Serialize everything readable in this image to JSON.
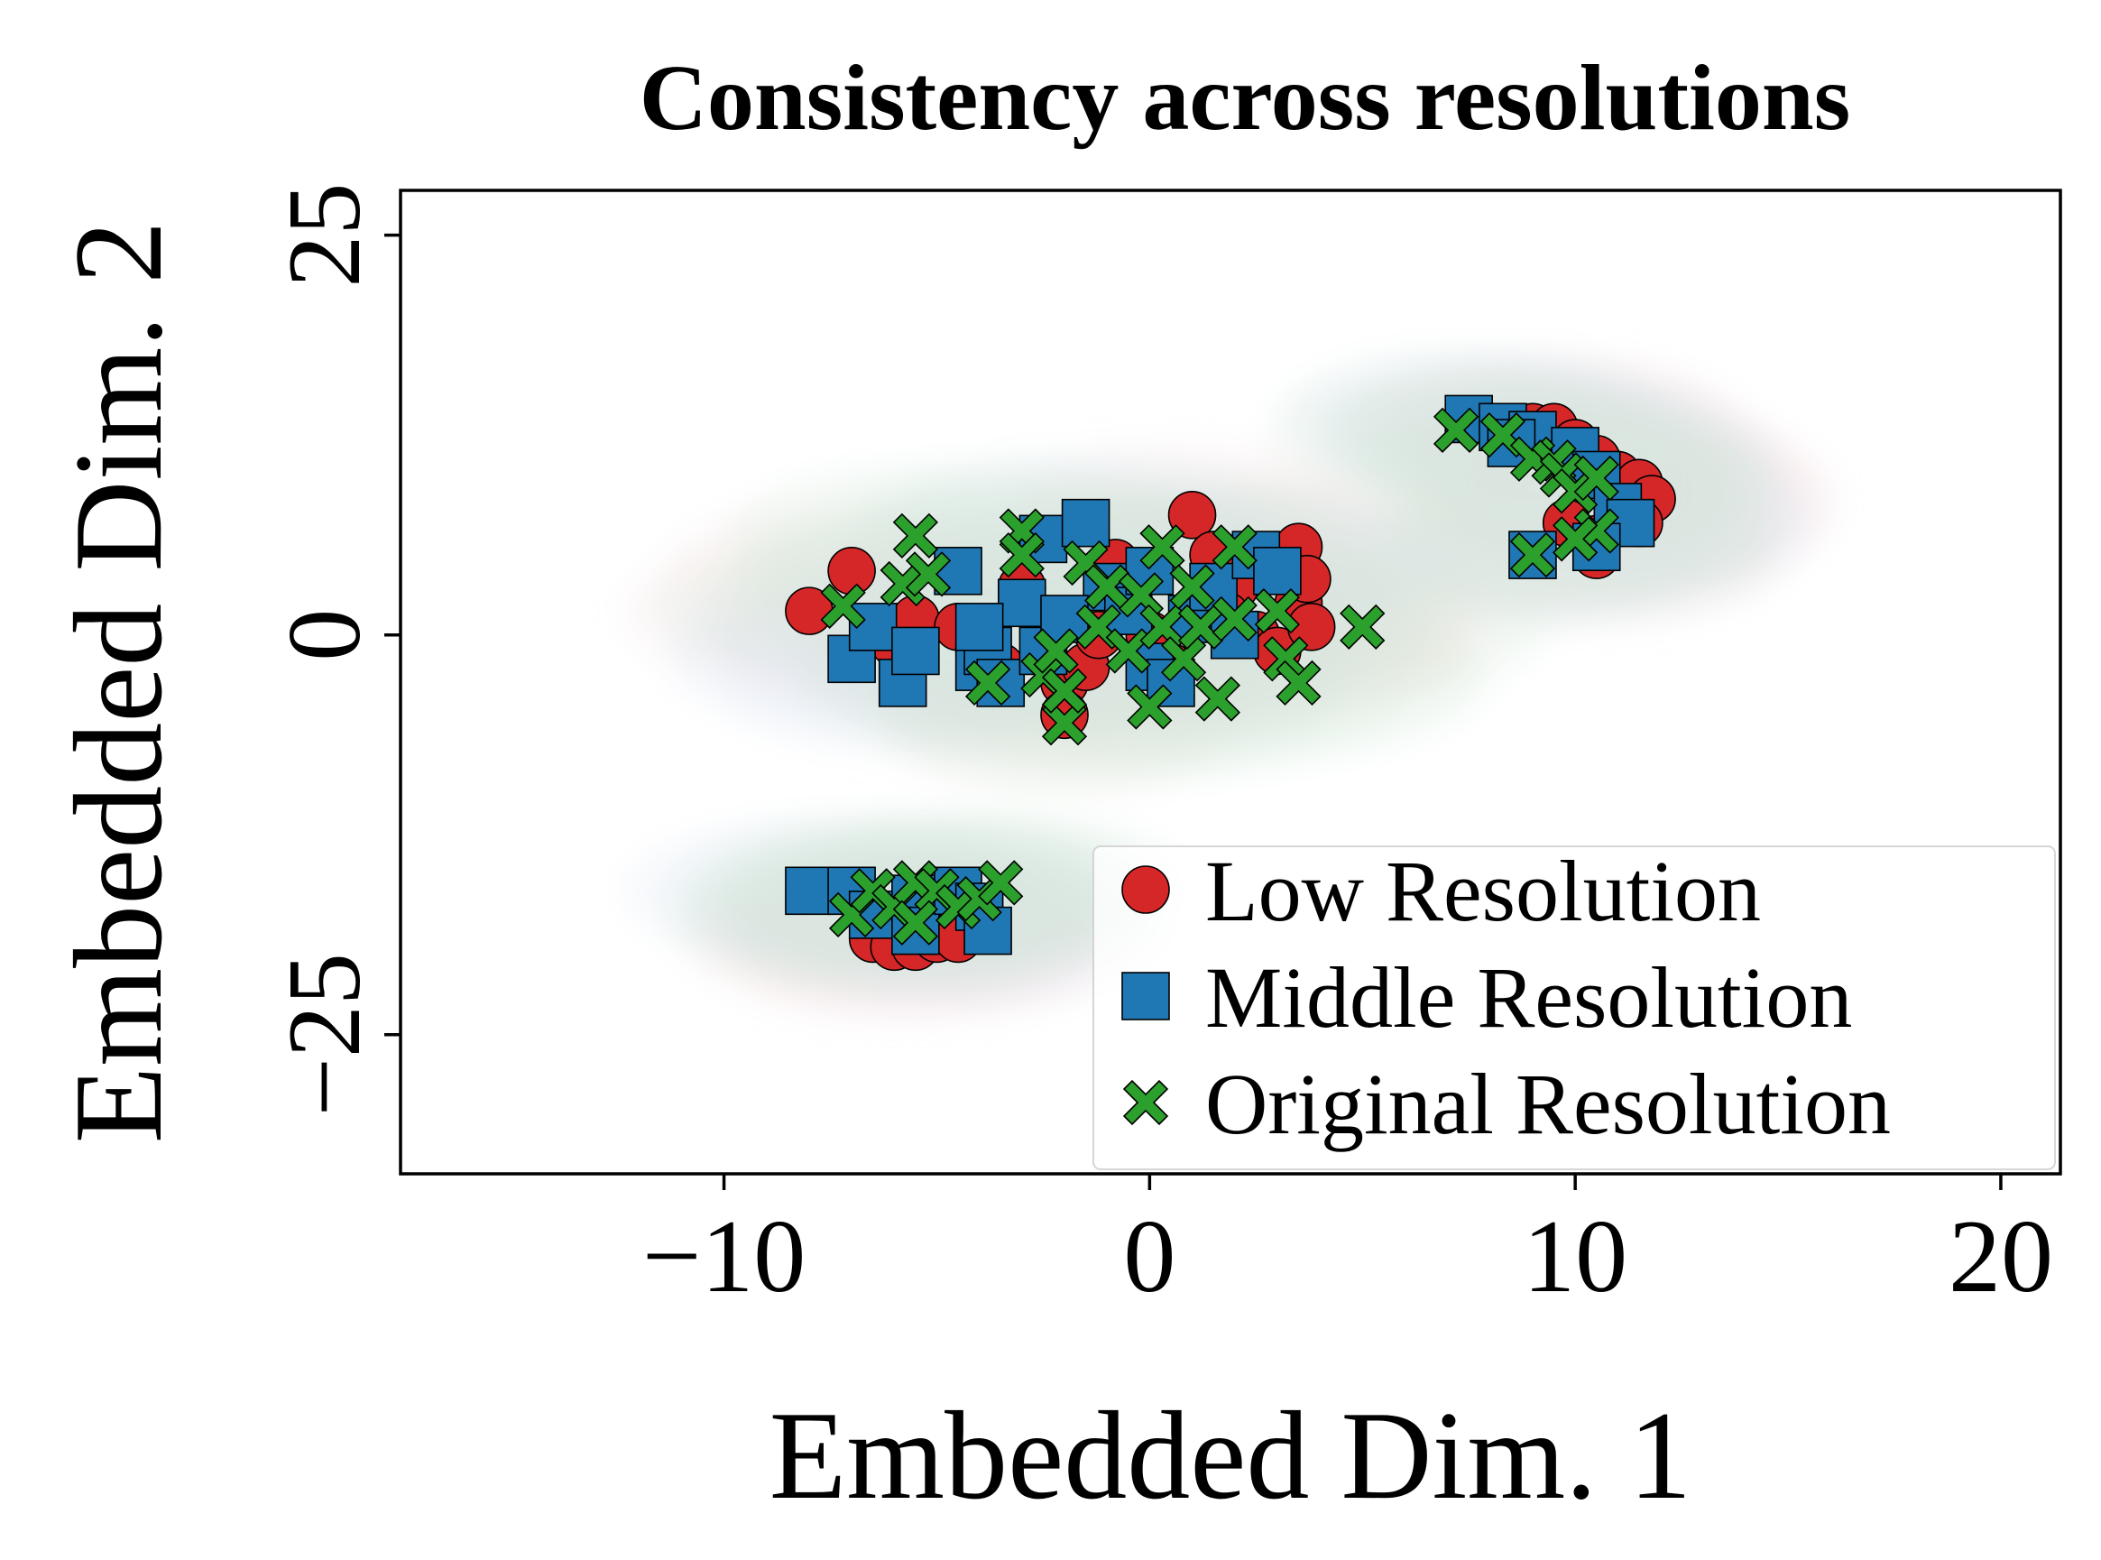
{
  "chart_data": {
    "type": "scatter",
    "title": "Consistency across resolutions",
    "xlabel": "Embedded Dim. 1",
    "ylabel": "Embedded Dim. 2",
    "xlim": [
      -17.6,
      21.4
    ],
    "ylim": [
      -33.7,
      27.8
    ],
    "xticks": [
      -10,
      0,
      10,
      20
    ],
    "yticks": [
      -25,
      0,
      25
    ],
    "xtick_labels": [
      "−10",
      "0",
      "10",
      "20"
    ],
    "ytick_labels": [
      "−25",
      "0",
      "25"
    ],
    "grid": false,
    "legend_position": "lower-right",
    "density_contours": true,
    "series": [
      {
        "name": "Low Resolution",
        "marker": "circle",
        "color": "#d62728",
        "points": [
          [
            -8,
            1.5
          ],
          [
            -7,
            4
          ],
          [
            -6,
            -0.5
          ],
          [
            -5.5,
            1
          ],
          [
            -4.5,
            0.5
          ],
          [
            -3.5,
            -2
          ],
          [
            -3,
            3
          ],
          [
            -2,
            -3
          ],
          [
            -1.5,
            -2
          ],
          [
            -2,
            -5
          ],
          [
            -1.2,
            0
          ],
          [
            -0.5,
            2
          ],
          [
            0,
            0
          ],
          [
            0.5,
            -2
          ],
          [
            1,
            7.5
          ],
          [
            1.5,
            5
          ],
          [
            2,
            3
          ],
          [
            2.5,
            0
          ],
          [
            3,
            -1
          ],
          [
            3.5,
            5.5
          ],
          [
            3.5,
            2
          ],
          [
            3.8,
            0.5
          ],
          [
            3.7,
            3.5
          ],
          [
            1.8,
            1.2
          ],
          [
            -0.8,
            4.5
          ],
          [
            9,
            13
          ],
          [
            9.5,
            13
          ],
          [
            10,
            12
          ],
          [
            10.5,
            11
          ],
          [
            11,
            10
          ],
          [
            11.5,
            9.5
          ],
          [
            11.8,
            8.5
          ],
          [
            11.5,
            7
          ],
          [
            10.5,
            6
          ],
          [
            10.5,
            5
          ],
          [
            9.8,
            7
          ],
          [
            -6.5,
            -19
          ],
          [
            -6,
            -19.5
          ],
          [
            -5.5,
            -19.5
          ],
          [
            -5,
            -19
          ],
          [
            -4.5,
            -19
          ],
          [
            -6,
            -17.5
          ]
        ]
      },
      {
        "name": "Middle Resolution",
        "marker": "square",
        "color": "#1f77b4",
        "points": [
          [
            -7,
            -1.5
          ],
          [
            -6.5,
            0.5
          ],
          [
            -5.8,
            -3
          ],
          [
            -5.5,
            -1
          ],
          [
            -4.5,
            4
          ],
          [
            -4,
            -2
          ],
          [
            -3.8,
            -1
          ],
          [
            -3.5,
            -3
          ],
          [
            -3,
            2
          ],
          [
            -2.5,
            -1
          ],
          [
            -2.5,
            6
          ],
          [
            -1.5,
            7
          ],
          [
            -1,
            3
          ],
          [
            -0.5,
            1.5
          ],
          [
            0,
            4
          ],
          [
            0,
            -2
          ],
          [
            0.5,
            -3
          ],
          [
            1,
            1
          ],
          [
            1.5,
            3
          ],
          [
            2,
            0
          ],
          [
            2.5,
            5
          ],
          [
            3,
            4
          ],
          [
            -2,
            1
          ],
          [
            -4,
            0.5
          ],
          [
            7.5,
            13.5
          ],
          [
            8.3,
            13
          ],
          [
            9,
            12.5
          ],
          [
            10,
            11.5
          ],
          [
            10.5,
            10
          ],
          [
            11,
            8
          ],
          [
            11.3,
            7
          ],
          [
            9,
            5
          ],
          [
            10.5,
            5.5
          ],
          [
            8.5,
            12
          ],
          [
            -8,
            -16
          ],
          [
            -7,
            -16
          ],
          [
            -6.5,
            -17.5
          ],
          [
            -5.5,
            -16.5
          ],
          [
            -5.5,
            -18.5
          ],
          [
            -4.5,
            -16
          ],
          [
            -4,
            -17
          ],
          [
            -3.8,
            -18.5
          ]
        ]
      },
      {
        "name": "Original Resolution",
        "marker": "x",
        "color": "#2ca02c",
        "points": [
          [
            -7.2,
            1.8
          ],
          [
            -5.8,
            3.2
          ],
          [
            -5.5,
            6.2
          ],
          [
            -5.2,
            3.8
          ],
          [
            -3.8,
            -3
          ],
          [
            -3,
            6.5
          ],
          [
            -3,
            5
          ],
          [
            -2.5,
            -2.5
          ],
          [
            -2.2,
            -1
          ],
          [
            -2,
            -5.5
          ],
          [
            -2,
            -3.5
          ],
          [
            -1.5,
            4.5
          ],
          [
            -1.2,
            0.5
          ],
          [
            -1,
            3
          ],
          [
            -0.5,
            -1
          ],
          [
            -0.2,
            2.5
          ],
          [
            0,
            -4.5
          ],
          [
            0.3,
            0.5
          ],
          [
            0.3,
            5.5
          ],
          [
            0.8,
            -1.5
          ],
          [
            1,
            3
          ],
          [
            1.2,
            0.5
          ],
          [
            1.6,
            -4
          ],
          [
            2,
            1
          ],
          [
            2,
            5.5
          ],
          [
            3,
            1.5
          ],
          [
            3.2,
            -1.5
          ],
          [
            3.5,
            -3
          ],
          [
            5,
            0.5
          ],
          [
            7.2,
            12.8
          ],
          [
            8.3,
            12.5
          ],
          [
            9,
            11
          ],
          [
            9.5,
            10.8
          ],
          [
            9.7,
            10
          ],
          [
            10,
            9
          ],
          [
            10.5,
            9.8
          ],
          [
            10.5,
            6.5
          ],
          [
            10,
            6
          ],
          [
            9,
            5
          ],
          [
            -7,
            -17.5
          ],
          [
            -6.5,
            -16
          ],
          [
            -6,
            -17
          ],
          [
            -5.5,
            -15.5
          ],
          [
            -5,
            -16
          ],
          [
            -4.5,
            -17
          ],
          [
            -4,
            -16.5
          ],
          [
            -3.5,
            -15.5
          ],
          [
            -5.5,
            -18
          ]
        ]
      }
    ]
  }
}
